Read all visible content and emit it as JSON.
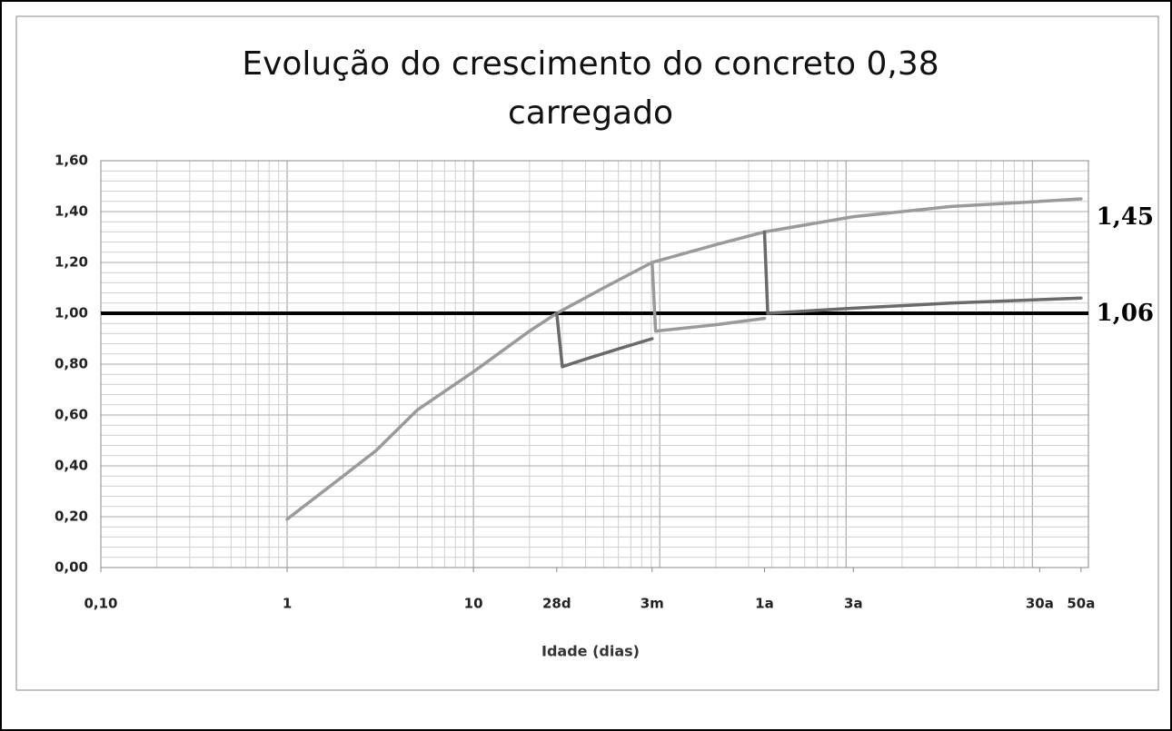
{
  "chart_data": {
    "type": "line",
    "title_lines": [
      "Evolução do crescimento do concreto 0,38",
      "carregado"
    ],
    "x_label": "Idade (dias)",
    "x_log": true,
    "xlim": [
      0.1,
      20000
    ],
    "xticks": [
      {
        "value": 0.1,
        "label": "0,10"
      },
      1,
      10,
      {
        "value": 28,
        "label": "28d"
      },
      {
        "value": 91,
        "label": "3m"
      },
      {
        "value": 365,
        "label": "1a"
      },
      {
        "value": 1095,
        "label": "3a"
      },
      {
        "value": 10950,
        "label": "30a"
      },
      {
        "value": 18250,
        "label": "50a"
      }
    ],
    "ylim": [
      0,
      1.6
    ],
    "yticks": [
      {
        "value": 0,
        "label": "0,00"
      },
      {
        "value": 0.2,
        "label": "0,20"
      },
      {
        "value": 0.4,
        "label": "0,40"
      },
      {
        "value": 0.6,
        "label": "0,60"
      },
      {
        "value": 0.8,
        "label": "0,80"
      },
      {
        "value": 1.0,
        "label": "1,00"
      },
      {
        "value": 1.2,
        "label": "1,20"
      },
      {
        "value": 1.4,
        "label": "1,40"
      },
      {
        "value": 1.6,
        "label": "1,60"
      }
    ],
    "grid": true,
    "y_minor_divisions": 5,
    "x_minor_grid": true,
    "reference_line": {
      "value": 1.0,
      "color": "#000000"
    },
    "series": [
      {
        "color": "#9a9a9a",
        "x": [
          1,
          2,
          3,
          5,
          10,
          20,
          28,
          50,
          91,
          200,
          365,
          1095,
          3650,
          10950,
          18250
        ],
        "values": [
          0.19,
          0.36,
          0.46,
          0.62,
          0.77,
          0.93,
          1.0,
          1.1,
          1.2,
          1.27,
          1.32,
          1.38,
          1.42,
          1.44,
          1.45
        ]
      },
      {
        "color": "#6a6a6a",
        "x": [
          28,
          30,
          40,
          60,
          91
        ],
        "values": [
          1.0,
          0.79,
          0.82,
          0.86,
          0.9
        ]
      },
      {
        "color": "#9a9a9a",
        "x": [
          91,
          95,
          200,
          365
        ],
        "values": [
          1.2,
          0.93,
          0.955,
          0.98
        ]
      },
      {
        "color": "#6a6a6a",
        "x": [
          365,
          380,
          1095,
          3650,
          18250
        ],
        "values": [
          1.32,
          1.0,
          1.02,
          1.04,
          1.06
        ]
      }
    ],
    "annotations": [
      "1,45",
      "1,06"
    ]
  }
}
